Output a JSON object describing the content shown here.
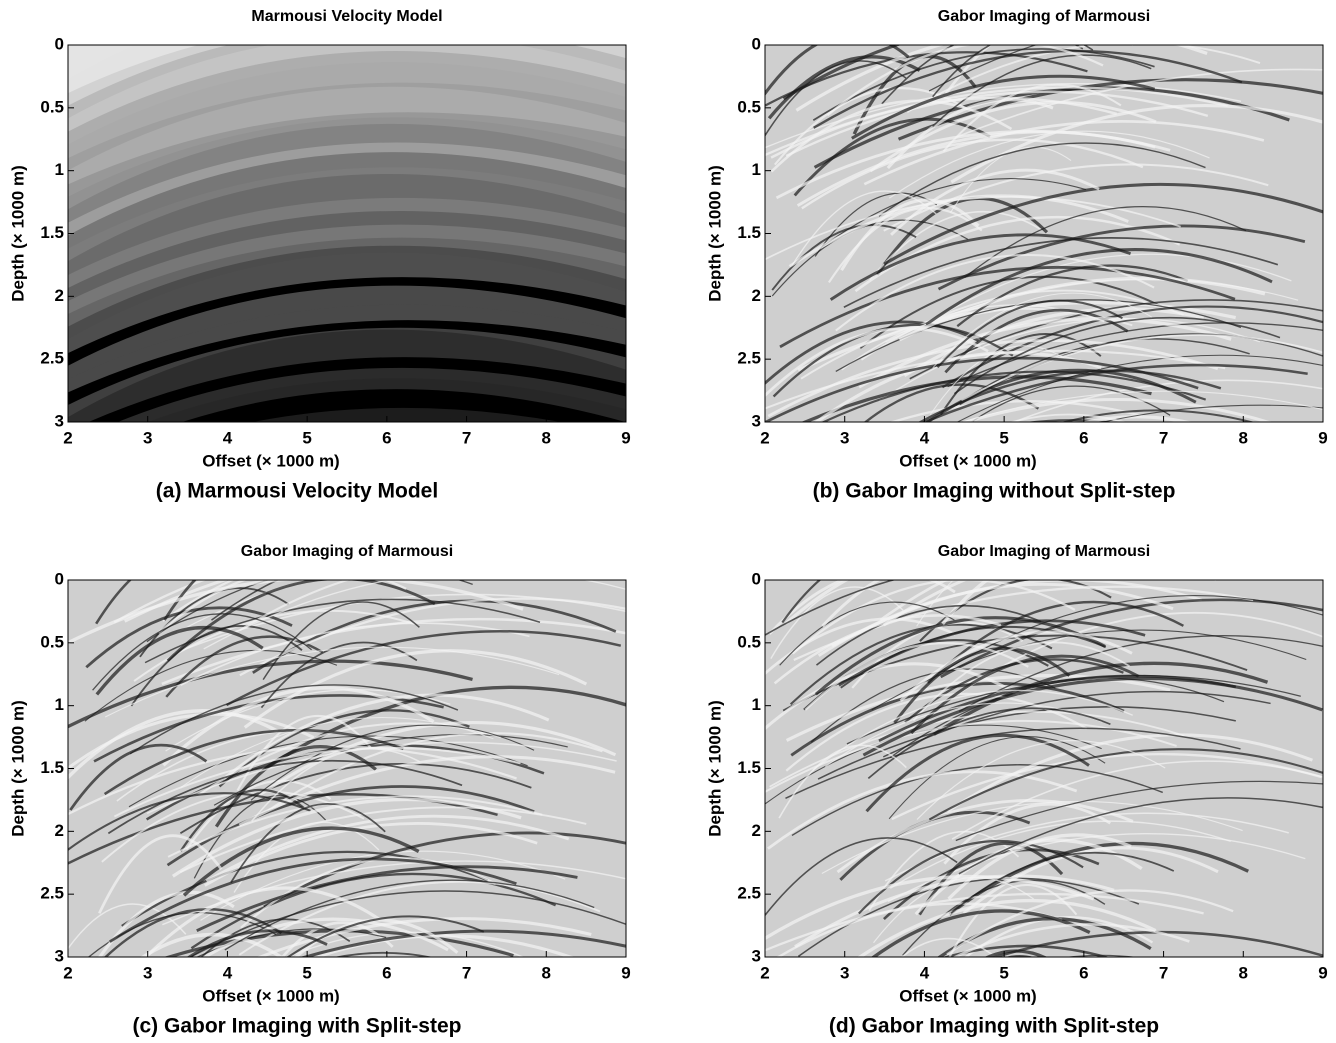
{
  "chart_data": [
    {
      "type": "image",
      "title": "Marmousi Velocity Model",
      "caption": "(a) Marmousi Velocity Model",
      "xlabel": "Offset (× 1000 m)",
      "ylabel": "Depth (× 1000 m)",
      "xlim": [
        2,
        9
      ],
      "ylim": [
        0,
        3
      ],
      "y_inverted": true,
      "xticks": [
        2,
        3,
        4,
        5,
        6,
        7,
        8,
        9
      ],
      "yticks": [
        0,
        0.5,
        1,
        1.5,
        2,
        2.5,
        3
      ]
    },
    {
      "type": "image",
      "title": "Gabor Imaging of Marmousi",
      "caption": "(b) Gabor Imaging without Split-step",
      "xlabel": "Offset (× 1000 m)",
      "ylabel": "Depth (× 1000 m)",
      "xlim": [
        2,
        9
      ],
      "ylim": [
        0,
        3
      ],
      "y_inverted": true,
      "xticks": [
        2,
        3,
        4,
        5,
        6,
        7,
        8,
        9
      ],
      "yticks": [
        0,
        0.5,
        1,
        1.5,
        2,
        2.5,
        3
      ]
    },
    {
      "type": "image",
      "title": "Gabor Imaging of Marmousi",
      "caption": "(c) Gabor Imaging with Split-step",
      "xlabel": "Offset (× 1000 m)",
      "ylabel": "Depth (× 1000 m)",
      "xlim": [
        2,
        9
      ],
      "ylim": [
        0,
        3
      ],
      "y_inverted": true,
      "xticks": [
        2,
        3,
        4,
        5,
        6,
        7,
        8,
        9
      ],
      "yticks": [
        0,
        0.5,
        1,
        1.5,
        2,
        2.5,
        3
      ]
    },
    {
      "type": "image",
      "title": "Gabor Imaging of Marmousi",
      "caption": "(d) Gabor Imaging with Split-step",
      "xlabel": "Offset (× 1000 m)",
      "ylabel": "Depth (× 1000 m)",
      "xlim": [
        2,
        9
      ],
      "ylim": [
        0,
        3
      ],
      "y_inverted": true,
      "xticks": [
        2,
        3,
        4,
        5,
        6,
        7,
        8,
        9
      ],
      "yticks": [
        0,
        0.5,
        1,
        1.5,
        2,
        2.5,
        3
      ]
    }
  ]
}
